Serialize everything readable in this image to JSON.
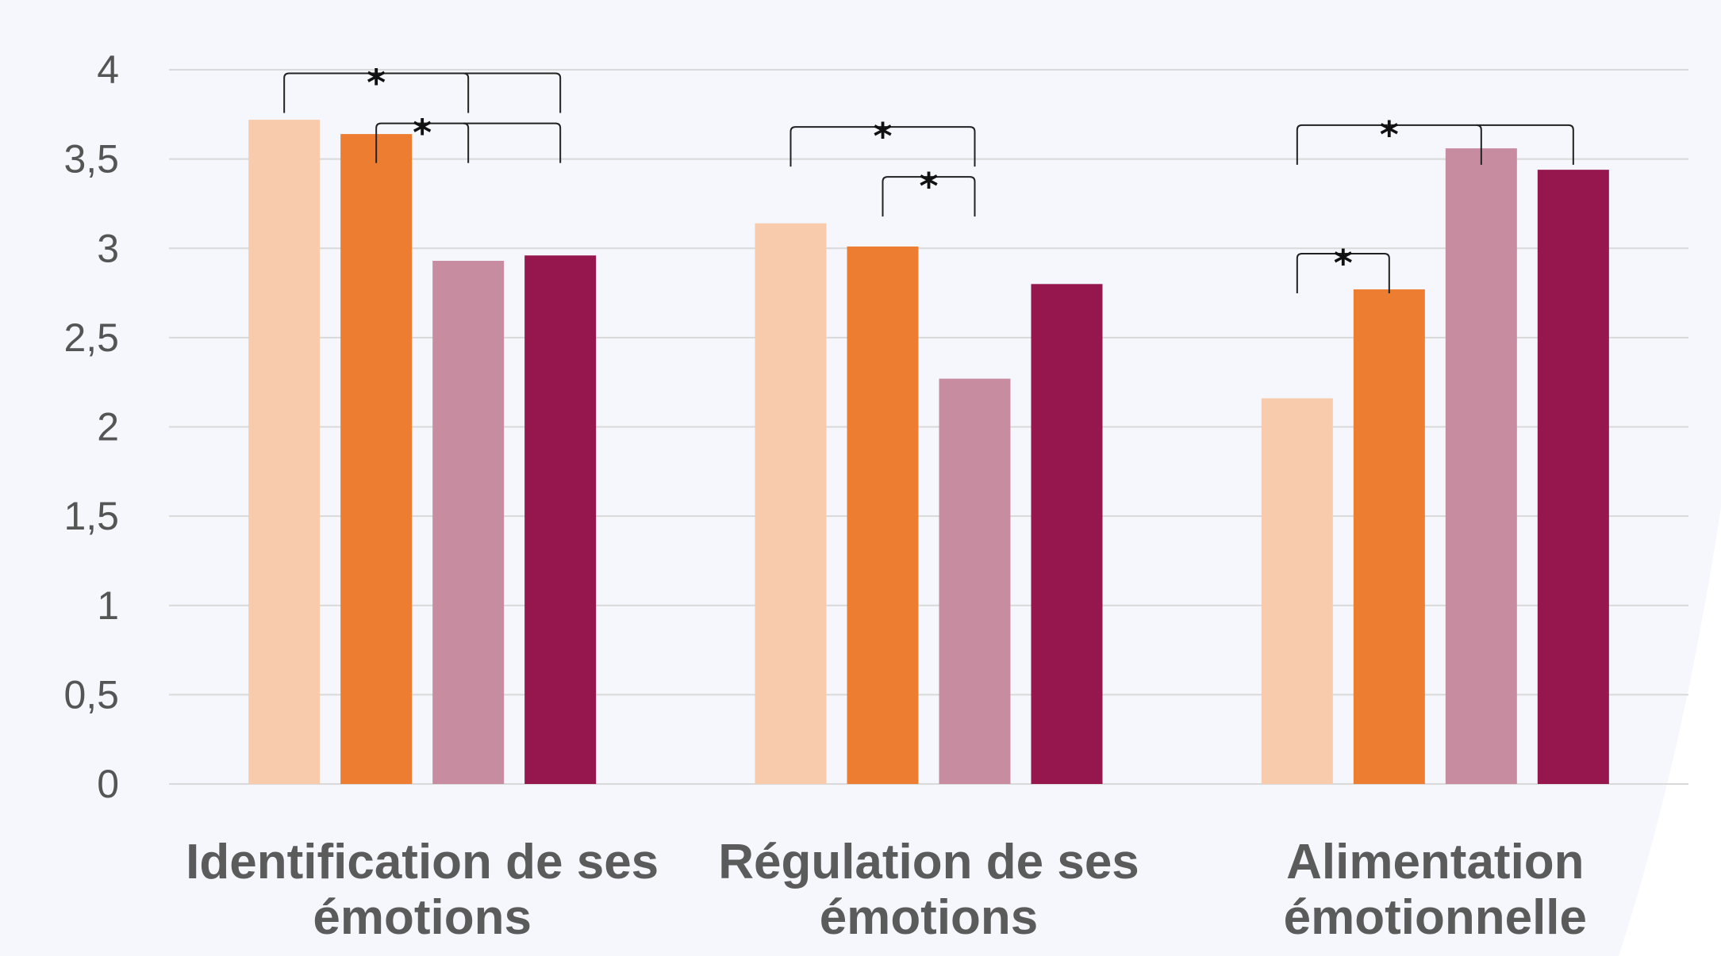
{
  "chart_data": {
    "type": "bar",
    "categories": [
      [
        "Identification de ses",
        "émotions"
      ],
      [
        "Régulation de ses",
        "émotions"
      ],
      [
        "Alimentation",
        "émotionnelle"
      ]
    ],
    "series": [
      {
        "color": "#f8cbad",
        "values": [
          3.72,
          3.14,
          2.16
        ]
      },
      {
        "color": "#ed7d31",
        "values": [
          3.64,
          3.01,
          2.77
        ]
      },
      {
        "color": "#c88ca0",
        "values": [
          2.93,
          2.27,
          3.56
        ]
      },
      {
        "color": "#96164e",
        "values": [
          2.96,
          2.8,
          3.44
        ]
      }
    ],
    "ylim": [
      0,
      4
    ],
    "yticks": [
      "0",
      "0,5",
      "1",
      "1,5",
      "2",
      "2,5",
      "3",
      "3,5",
      "4"
    ],
    "grid": true,
    "annotations": [
      {
        "category": 0,
        "from": 0,
        "to": 2,
        "extra_to": 3,
        "level": 3.98,
        "label": "*"
      },
      {
        "category": 0,
        "from": 1,
        "to": 2,
        "extra_to": 3,
        "level": 3.7,
        "label": "*"
      },
      {
        "category": 1,
        "from": 0,
        "to": 2,
        "level": 3.68,
        "label": "*"
      },
      {
        "category": 1,
        "from": 1,
        "to": 2,
        "level": 3.4,
        "label": "*"
      },
      {
        "category": 2,
        "from": 0,
        "to": 2,
        "extra_to": 3,
        "level": 3.69,
        "label": "*"
      },
      {
        "category": 2,
        "from": 0,
        "to": 1,
        "level": 2.97,
        "label": "*"
      }
    ]
  }
}
